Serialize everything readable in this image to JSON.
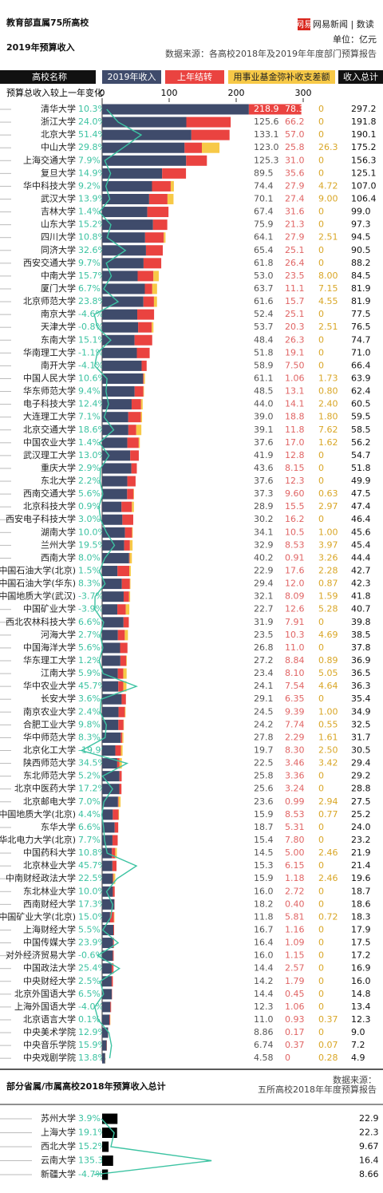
{
  "brand_icon": "网易",
  "brand": "网易新闻 | 数读",
  "unit": "单位：亿元",
  "chart_data": [
    {
      "type": "stacked-bar-horizontal",
      "title_lines": [
        "教育部直属75所高校",
        "2019年预算收入"
      ],
      "source": "数据来源：各高校2018年及2019年年度部门预算报告",
      "category_label": "高校名称",
      "categories": [
        "清华大学",
        "浙江大学",
        "北京大学",
        "中山大学",
        "上海交通大学",
        "复旦大学",
        "华中科技大学",
        "武汉大学",
        "吉林大学",
        "山东大学",
        "四川大学",
        "同济大学",
        "西安交通大学",
        "中南大学",
        "厦门大学",
        "北京师范大学",
        "南京大学",
        "天津大学",
        "东南大学",
        "华南理工大学",
        "南开大学",
        "中国人民大学",
        "华东师范大学",
        "电子科技大学",
        "大连理工大学",
        "北京交通大学",
        "中国农业大学",
        "武汉理工大学",
        "重庆大学",
        "东北大学",
        "西南交通大学",
        "北京科技大学",
        "西安电子科技大学",
        "湖南大学",
        "兰州大学",
        "西南大学",
        "中国石油大学(北京)",
        "中国石油大学(华东)",
        "中国地质大学(武汉)",
        "中国矿业大学",
        "西北农林科技大学",
        "河海大学",
        "中国海洋大学",
        "华东理工大学",
        "江南大学",
        "华中农业大学",
        "长安大学",
        "南京农业大学",
        "合肥工业大学",
        "华中师范大学",
        "北京化工大学",
        "陕西师范大学",
        "东北师范大学",
        "北京中医药大学",
        "北京邮电大学",
        "中国地质大学(北京)",
        "东华大学",
        "华北电力大学(北京)",
        "中国药科大学",
        "北京林业大学",
        "中南财经政法大学",
        "东北林业大学",
        "西南财经大学",
        "中国矿业大学(北京)",
        "上海财经大学",
        "中国传媒大学",
        "对外经济贸易大学",
        "中国政法大学",
        "中央财经大学",
        "北京外国语大学",
        "上海外国语大学",
        "北京语言大学",
        "中央美术学院",
        "中央音乐学院",
        "中央戏剧学院"
      ],
      "series": [
        {
          "name": "2019年收入",
          "color": "#3f4b6b",
          "text_color": "#555555",
          "values": [
            218.9,
            125.6,
            133.1,
            123.0,
            125.3,
            89.5,
            74.4,
            70.1,
            67.4,
            75.9,
            64.1,
            65.4,
            61.8,
            53.0,
            63.7,
            61.6,
            52.4,
            53.7,
            48.4,
            51.8,
            58.9,
            61.1,
            48.5,
            44.0,
            39.0,
            39.1,
            37.6,
            41.9,
            43.6,
            37.6,
            37.3,
            28.9,
            30.2,
            34.1,
            32.9,
            40.2,
            22.9,
            29.4,
            32.1,
            22.7,
            31.9,
            23.5,
            26.8,
            27.2,
            23.4,
            24.1,
            29.1,
            24.5,
            24.2,
            27.8,
            19.7,
            22.5,
            25.8,
            25.6,
            23.6,
            15.9,
            18.7,
            15.4,
            14.5,
            15.3,
            15.9,
            16.0,
            18.2,
            11.8,
            16.7,
            16.4,
            16.0,
            14.4,
            14.2,
            14.4,
            12.3,
            11.0,
            8.86,
            6.74,
            4.58
          ],
          "value_labels": [
            "218.9",
            "125.6",
            "133.1",
            "123.0",
            "125.3",
            "89.5",
            "74.4",
            "70.1",
            "67.4",
            "75.9",
            "64.1",
            "65.4",
            "61.8",
            "53.0",
            "63.7",
            "61.6",
            "52.4",
            "53.7",
            "48.4",
            "51.8",
            "58.9",
            "61.1",
            "48.5",
            "44.0",
            "39.0",
            "39.1",
            "37.6",
            "41.9",
            "43.6",
            "37.6",
            "37.3",
            "28.9",
            "30.2",
            "34.1",
            "32.9",
            "40.2",
            "22.9",
            "29.4",
            "32.1",
            "22.7",
            "31.9",
            "23.5",
            "26.8",
            "27.2",
            "23.4",
            "24.1",
            "29.1",
            "24.5",
            "24.2",
            "27.8",
            "19.7",
            "22.5",
            "25.8",
            "25.6",
            "23.6",
            "15.9",
            "18.7",
            "15.4",
            "14.5",
            "15.3",
            "15.9",
            "16.0",
            "18.2",
            "11.8",
            "16.7",
            "16.4",
            "16.0",
            "14.4",
            "14.2",
            "14.4",
            "12.3",
            "11.0",
            "8.86",
            "6.74",
            "4.58"
          ]
        },
        {
          "name": "上年结转",
          "color": "#ea4340",
          "text_color": "#e06464",
          "values": [
            78.3,
            66.2,
            57.0,
            25.8,
            31.0,
            35.6,
            27.9,
            27.4,
            31.6,
            21.3,
            27.9,
            25.1,
            26.4,
            23.5,
            11.1,
            15.7,
            25.1,
            20.3,
            26.3,
            19.1,
            7.5,
            1.06,
            13.1,
            14.1,
            18.8,
            11.8,
            17.0,
            12.8,
            8.15,
            12.3,
            9.6,
            15.5,
            16.2,
            10.5,
            8.53,
            0.91,
            17.6,
            12.0,
            8.09,
            12.6,
            7.91,
            10.3,
            11.0,
            8.84,
            8.1,
            7.54,
            6.35,
            9.39,
            7.74,
            2.29,
            8.3,
            3.46,
            3.36,
            3.24,
            0.99,
            8.53,
            5.31,
            7.8,
            5.0,
            6.15,
            1.18,
            2.72,
            0.4,
            5.81,
            1.16,
            1.09,
            1.15,
            2.57,
            1.79,
            0.45,
            1.06,
            0.93,
            0.17,
            0.37,
            0
          ],
          "value_labels": [
            "78.3",
            "66.2",
            "57.0",
            "25.8",
            "31.0",
            "35.6",
            "27.9",
            "27.4",
            "31.6",
            "21.3",
            "27.9",
            "25.1",
            "26.4",
            "23.5",
            "11.1",
            "15.7",
            "25.1",
            "20.3",
            "26.3",
            "19.1",
            "7.50",
            "1.06",
            "13.1",
            "14.1",
            "18.8",
            "11.8",
            "17.0",
            "12.8",
            "8.15",
            "12.3",
            "9.60",
            "15.5",
            "16.2",
            "10.5",
            "8.53",
            "0.91",
            "17.6",
            "12.0",
            "8.09",
            "12.6",
            "7.91",
            "10.3",
            "11.0",
            "8.84",
            "8.10",
            "7.54",
            "6.35",
            "9.39",
            "7.74",
            "2.29",
            "8.30",
            "3.46",
            "3.36",
            "3.24",
            "0.99",
            "8.53",
            "5.31",
            "7.80",
            "5.00",
            "6.15",
            "1.18",
            "2.72",
            "0.40",
            "5.81",
            "1.16",
            "1.09",
            "1.15",
            "2.57",
            "1.79",
            "0.45",
            "1.06",
            "0.93",
            "0.17",
            "0.37",
            "0"
          ]
        },
        {
          "name": "用事业基金弥补收支差额",
          "color": "#f7c947",
          "text_color": "#d9a626",
          "values": [
            0,
            0,
            0,
            26.3,
            0,
            0,
            4.72,
            9.0,
            0,
            0,
            2.51,
            0,
            0,
            8.0,
            7.15,
            4.55,
            0,
            2.51,
            0,
            0,
            0,
            1.73,
            0.8,
            2.4,
            1.8,
            7.62,
            1.62,
            0,
            0,
            0,
            0.63,
            2.97,
            0,
            1.0,
            3.97,
            3.26,
            2.28,
            0.87,
            1.59,
            5.28,
            0,
            4.69,
            0,
            0.89,
            5.05,
            4.64,
            0,
            1.0,
            0.55,
            1.61,
            2.5,
            3.42,
            0,
            0,
            2.94,
            0.77,
            0,
            0,
            2.46,
            0,
            2.46,
            0,
            0,
            0.72,
            0,
            0,
            0,
            0,
            0,
            0,
            0,
            0.37,
            0,
            0.07,
            0.28
          ],
          "value_labels": [
            "0",
            "0",
            "0",
            "26.3",
            "0",
            "0",
            "4.72",
            "9.00",
            "0",
            "0",
            "2.51",
            "0",
            "0",
            "8.00",
            "7.15",
            "4.55",
            "0",
            "2.51",
            "0",
            "0",
            "0",
            "1.73",
            "0.80",
            "2.40",
            "1.80",
            "7.62",
            "1.62",
            "0",
            "0",
            "0",
            "0.63",
            "2.97",
            "0",
            "1.00",
            "3.97",
            "3.26",
            "2.28",
            "0.87",
            "1.59",
            "5.28",
            "0",
            "4.69",
            "0",
            "0.89",
            "5.05",
            "4.64",
            "0",
            "1.00",
            "0.55",
            "1.61",
            "2.50",
            "3.42",
            "0",
            "0",
            "2.94",
            "0.77",
            "0",
            "0",
            "2.46",
            "0",
            "2.46",
            "0",
            "0",
            "0.72",
            "0",
            "0",
            "0",
            "0",
            "0",
            "0",
            "0",
            "0.37",
            "0",
            "0.07",
            "0.28"
          ]
        }
      ],
      "totals": {
        "name": "收入总计",
        "values": [
          297.2,
          191.8,
          190.1,
          175.2,
          156.3,
          125.1,
          107.0,
          106.4,
          99.0,
          97.3,
          94.5,
          90.5,
          88.2,
          84.5,
          81.9,
          81.9,
          77.5,
          76.5,
          74.7,
          71.0,
          66.4,
          63.9,
          62.4,
          60.5,
          59.5,
          58.5,
          56.2,
          54.7,
          51.8,
          49.9,
          47.5,
          47.4,
          46.4,
          45.6,
          45.4,
          44.4,
          42.7,
          42.3,
          41.8,
          40.7,
          39.8,
          38.5,
          37.8,
          36.9,
          36.5,
          36.3,
          35.4,
          34.9,
          32.5,
          31.7,
          30.5,
          29.4,
          29.2,
          28.8,
          27.5,
          25.2,
          24.0,
          23.2,
          21.9,
          21.4,
          19.6,
          18.7,
          18.6,
          18.3,
          17.9,
          17.5,
          17.2,
          16.9,
          16.0,
          14.8,
          13.4,
          12.3,
          9.0,
          7.2,
          4.9
        ],
        "value_labels": [
          "297.2",
          "191.8",
          "190.1",
          "175.2",
          "156.3",
          "125.1",
          "107.0",
          "106.4",
          "99.0",
          "97.3",
          "94.5",
          "90.5",
          "88.2",
          "84.5",
          "81.9",
          "81.9",
          "77.5",
          "76.5",
          "74.7",
          "71.0",
          "66.4",
          "63.9",
          "62.4",
          "60.5",
          "59.5",
          "58.5",
          "56.2",
          "54.7",
          "51.8",
          "49.9",
          "47.5",
          "47.4",
          "46.4",
          "45.6",
          "45.4",
          "44.4",
          "42.7",
          "42.3",
          "41.8",
          "40.7",
          "39.8",
          "38.5",
          "37.8",
          "36.9",
          "36.5",
          "36.3",
          "35.4",
          "34.9",
          "32.5",
          "31.7",
          "30.5",
          "29.4",
          "29.2",
          "28.8",
          "27.5",
          "25.2",
          "24.0",
          "23.2",
          "21.9",
          "21.4",
          "19.6",
          "18.7",
          "18.6",
          "18.3",
          "17.9",
          "17.5",
          "17.2",
          "16.9",
          "16.0",
          "14.8",
          "13.4",
          "12.3",
          "9.0",
          "7.2",
          "4.9"
        ]
      },
      "change": {
        "name": "预算总收入较上一年变化",
        "color": "#3cc3a2",
        "values": [
          10.3,
          24.0,
          51.4,
          29.8,
          7.9,
          14.9,
          9.2,
          13.9,
          1.4,
          15.2,
          10.8,
          32.6,
          9.7,
          15.7,
          6.7,
          23.8,
          -4.6,
          -0.8,
          15.1,
          -1.1,
          -4.1,
          10.6,
          9.4,
          12.4,
          7.1,
          18.6,
          1.4,
          13.0,
          2.9,
          2.2,
          5.6,
          0.9,
          3.0,
          10.0,
          19.5,
          8.0,
          1.5,
          8.3,
          -3.7,
          -3.9,
          6.6,
          2.7,
          5.6,
          1.2,
          5.9,
          45.7,
          3.6,
          2.4,
          9.8,
          8.3,
          -19.9,
          34.5,
          5.2,
          17.2,
          7.0,
          4.4,
          6.6,
          7.7,
          10.8,
          45.7,
          22.5,
          10.0,
          17.3,
          15.0,
          5.5,
          23.9,
          -0.6,
          25.4,
          2.5,
          6.5,
          -4.0,
          0.1,
          12.9,
          15.9,
          13.8
        ],
        "value_labels": [
          "10.3%",
          "24.0%",
          "51.4%",
          "29.8%",
          "7.9%",
          "14.9%",
          "9.2%",
          "13.9%",
          "1.4%",
          "15.2%",
          "10.8%",
          "32.6%",
          "9.7%",
          "15.7%",
          "6.7%",
          "23.8%",
          "-4.6%",
          "-0.8%",
          "15.1%",
          "-1.1%",
          "-4.1%",
          "10.6%",
          "9.4%",
          "12.4%",
          "7.1%",
          "18.6%",
          "1.4%",
          "13.0%",
          "2.9%",
          "2.2%",
          "5.6%",
          "0.9%",
          "3.0%",
          "10.0%",
          "19.5%",
          "8.0%",
          "1.5%",
          "8.3%",
          "-3.7%",
          "-3.9%",
          "6.6%",
          "2.7%",
          "5.6%",
          "1.2%",
          "5.9%",
          "45.7%",
          "3.6%",
          "2.4%",
          "9.8%",
          "8.3%",
          "-19.9%",
          "34.5%",
          "5.2%",
          "17.2%",
          "7.0%",
          "4.4%",
          "6.6%",
          "7.7%",
          "10.8%",
          "45.7%",
          "22.5%",
          "10.0%",
          "17.3%",
          "15.0%",
          "5.5%",
          "23.9%",
          "-0.6%",
          "25.4%",
          "2.5%",
          "6.5%",
          "-4.0%",
          "0.1%",
          "12.9%",
          "15.9%",
          "13.8%"
        ]
      },
      "xlim": [
        0,
        300
      ],
      "xticks": [
        0,
        100,
        200,
        300
      ]
    },
    {
      "type": "bar-horizontal",
      "title": "部分省属/市属高校2018年预算收入总计",
      "source_lines": [
        "数据来源：",
        "五所高校2018年年度预算报告"
      ],
      "categories": [
        "苏州大学",
        "上海大学",
        "西北大学",
        "云南大学",
        "新疆大学"
      ],
      "color": "#000000",
      "xlim": [
        0,
        300
      ],
      "totals": {
        "values": [
          22.9,
          22.3,
          9.67,
          16.4,
          8.66
        ],
        "value_labels": [
          "22.9",
          "22.3",
          "9.67",
          "16.4",
          "8.66"
        ]
      },
      "change": {
        "color": "#3cc3a2",
        "values": [
          3.9,
          19.1,
          15.2,
          135.3,
          -4.7
        ],
        "value_labels": [
          "3.9%",
          "19.1%",
          "15.2%",
          "135.3%",
          "-4.7%"
        ]
      }
    }
  ]
}
